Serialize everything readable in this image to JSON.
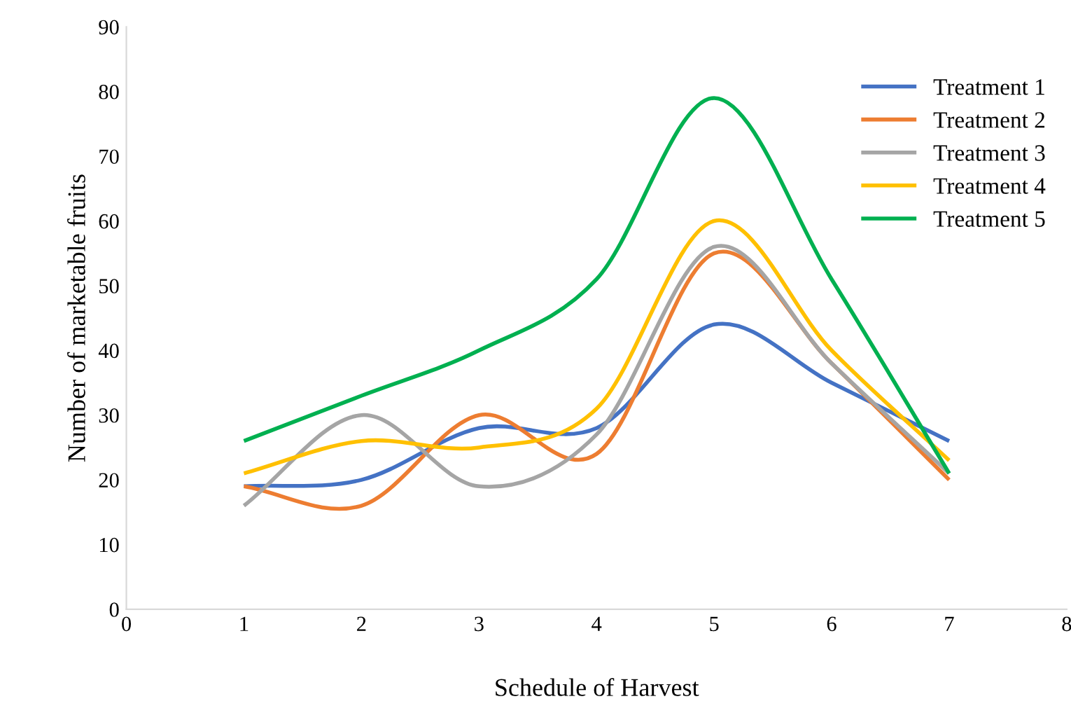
{
  "chart_data": {
    "type": "line",
    "xlabel": "Schedule of Harvest",
    "ylabel": "Number of marketable fruits",
    "x": [
      1,
      2,
      3,
      4,
      5,
      6,
      7
    ],
    "series": [
      {
        "name": "Treatment 1",
        "color": "#4472c4",
        "values": [
          19,
          20,
          28,
          28,
          44,
          35,
          26
        ]
      },
      {
        "name": "Treatment 2",
        "color": "#ed7d31",
        "values": [
          19,
          16,
          30,
          24,
          55,
          38,
          20
        ]
      },
      {
        "name": "Treatment 3",
        "color": "#a5a5a5",
        "values": [
          16,
          30,
          19,
          27,
          56,
          38,
          21
        ]
      },
      {
        "name": "Treatment 4",
        "color": "#ffc000",
        "values": [
          21,
          26,
          25,
          31,
          60,
          40,
          23
        ]
      },
      {
        "name": "Treatment 5",
        "color": "#00b050",
        "values": [
          26,
          33,
          40,
          51,
          79,
          51,
          21
        ]
      }
    ],
    "xlim": [
      0,
      8
    ],
    "xticks": [
      0,
      1,
      2,
      3,
      4,
      5,
      6,
      7,
      8
    ],
    "ylim": [
      0,
      90
    ],
    "yticks": [
      0,
      10,
      20,
      30,
      40,
      50,
      60,
      70,
      80,
      90
    ],
    "grid": false,
    "legend": "right",
    "marker": "none",
    "line_style": "solid"
  }
}
